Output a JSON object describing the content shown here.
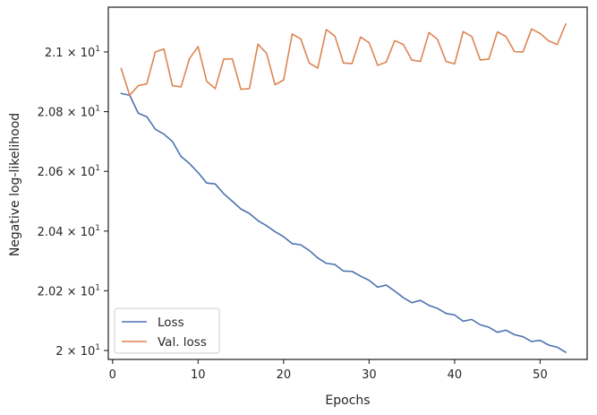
{
  "chart_data": {
    "type": "line",
    "xlabel": "Epochs",
    "ylabel": "Negative log-likelihood",
    "xlim": [
      -0.5,
      55.5
    ],
    "ylim": [
      19.97,
      21.15
    ],
    "x_ticks": [
      0,
      10,
      20,
      30,
      40,
      50
    ],
    "y_ticks": [
      {
        "value": 20.0,
        "mantissa": "2",
        "base": "10",
        "exp": "1"
      },
      {
        "value": 20.2,
        "mantissa": "2.02",
        "base": "10",
        "exp": "1"
      },
      {
        "value": 20.4,
        "mantissa": "2.04",
        "base": "10",
        "exp": "1"
      },
      {
        "value": 20.6,
        "mantissa": "2.06",
        "base": "10",
        "exp": "1"
      },
      {
        "value": 20.8,
        "mantissa": "2.08",
        "base": "10",
        "exp": "1"
      },
      {
        "value": 21.0,
        "mantissa": "2.1",
        "base": "10",
        "exp": "1"
      }
    ],
    "legend_position": "lower-left",
    "grid": false,
    "x": [
      1,
      2,
      3,
      4,
      5,
      6,
      7,
      8,
      9,
      10,
      11,
      12,
      13,
      14,
      15,
      16,
      17,
      18,
      19,
      20,
      21,
      22,
      23,
      24,
      25,
      26,
      27,
      28,
      29,
      30,
      31,
      32,
      33,
      34,
      35,
      36,
      37,
      38,
      39,
      40,
      41,
      42,
      43,
      44,
      45,
      46,
      47,
      48,
      49,
      50,
      51,
      52,
      53
    ],
    "series": [
      {
        "name": "Loss",
        "color": "#4c72b0",
        "values": [
          20.861,
          20.855,
          20.795,
          20.783,
          20.741,
          20.725,
          20.7,
          20.65,
          20.626,
          20.596,
          20.561,
          20.558,
          20.525,
          20.5,
          20.474,
          20.459,
          20.435,
          20.418,
          20.398,
          20.381,
          20.358,
          20.354,
          20.335,
          20.31,
          20.292,
          20.288,
          20.266,
          20.265,
          20.249,
          20.235,
          20.212,
          20.219,
          20.199,
          20.177,
          20.16,
          20.168,
          20.151,
          20.141,
          20.124,
          20.119,
          20.098,
          20.104,
          20.086,
          20.078,
          20.061,
          20.068,
          20.053,
          20.046,
          20.03,
          20.034,
          20.018,
          20.011,
          19.994
        ]
      },
      {
        "name": "Val. loss",
        "color": "#dd8452",
        "values": [
          20.945,
          20.855,
          20.887,
          20.893,
          21.0,
          21.01,
          20.887,
          20.883,
          20.978,
          21.018,
          20.902,
          20.877,
          20.976,
          20.977,
          20.875,
          20.877,
          21.026,
          20.996,
          20.89,
          20.906,
          21.06,
          21.044,
          20.963,
          20.946,
          21.075,
          21.053,
          20.963,
          20.961,
          21.05,
          21.031,
          20.955,
          20.966,
          21.038,
          21.025,
          20.973,
          20.968,
          21.065,
          21.042,
          20.968,
          20.96,
          21.068,
          21.052,
          20.973,
          20.976,
          21.067,
          21.052,
          21.001,
          21.0,
          21.077,
          21.062,
          21.037,
          21.025,
          21.094
        ]
      }
    ]
  }
}
